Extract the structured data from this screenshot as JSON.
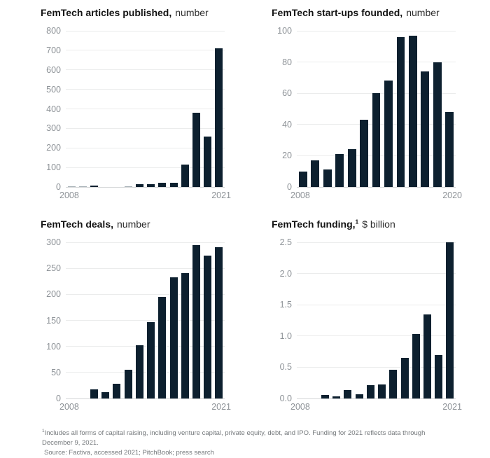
{
  "colors": {
    "bar": "#0d202f",
    "tiny_bar": "#a7b0b6",
    "gridline": "#ebecec",
    "axis_text": "#8d9297",
    "background": "#ffffff"
  },
  "chart_data": [
    {
      "type": "bar",
      "id": "articles-published",
      "title_bold": "FemTech articles published,",
      "title_suffix": "number",
      "xlabel": "",
      "ylabel": "number",
      "categories": [
        2008,
        2009,
        2010,
        2011,
        2012,
        2013,
        2014,
        2015,
        2016,
        2017,
        2018,
        2019,
        2020,
        2021
      ],
      "values": [
        2,
        2,
        8,
        0,
        0,
        4,
        15,
        13,
        20,
        22,
        115,
        380,
        260,
        710
      ],
      "yticks": [
        "800",
        "700",
        "600",
        "500",
        "400",
        "300",
        "200",
        "100",
        "0"
      ],
      "ylim": [
        0,
        800
      ],
      "x_axis_labels": [
        "2008",
        "2021"
      ],
      "grid": true,
      "legend": "none"
    },
    {
      "type": "bar",
      "id": "startups-founded",
      "title_bold": "FemTech start-ups founded,",
      "title_suffix": "number",
      "xlabel": "",
      "ylabel": "number",
      "categories": [
        2008,
        2009,
        2010,
        2011,
        2012,
        2013,
        2014,
        2015,
        2016,
        2017,
        2018,
        2019,
        2020
      ],
      "values": [
        10,
        17,
        11,
        21,
        24,
        43,
        60,
        68,
        96,
        97,
        74,
        80,
        48
      ],
      "yticks": [
        "100",
        "80",
        "60",
        "40",
        "20",
        "0"
      ],
      "ylim": [
        0,
        100
      ],
      "x_axis_labels": [
        "2008",
        "2020"
      ],
      "grid": true,
      "legend": "none"
    },
    {
      "type": "bar",
      "id": "deals",
      "title_bold": "FemTech deals,",
      "title_suffix": "number",
      "xlabel": "",
      "ylabel": "number",
      "categories": [
        2008,
        2009,
        2010,
        2011,
        2012,
        2013,
        2014,
        2015,
        2016,
        2017,
        2018,
        2019,
        2020,
        2021
      ],
      "values": [
        0,
        0,
        18,
        12,
        28,
        55,
        102,
        147,
        195,
        233,
        241,
        294,
        274,
        291
      ],
      "yticks": [
        "300",
        "250",
        "200",
        "150",
        "100",
        "50",
        "0"
      ],
      "ylim": [
        0,
        300
      ],
      "x_axis_labels": [
        "2008",
        "2021"
      ],
      "grid": true,
      "legend": "none"
    },
    {
      "type": "bar",
      "id": "funding",
      "title_bold": "FemTech funding,",
      "title_sup": "1",
      "title_suffix": "$ billion",
      "xlabel": "",
      "ylabel": "$ billion",
      "categories": [
        2008,
        2009,
        2010,
        2011,
        2012,
        2013,
        2014,
        2015,
        2016,
        2017,
        2018,
        2019,
        2020,
        2021
      ],
      "values": [
        0,
        0,
        0.06,
        0.03,
        0.13,
        0.07,
        0.21,
        0.22,
        0.46,
        0.65,
        1.03,
        1.35,
        0.69,
        2.5
      ],
      "yticks": [
        "2.5",
        "2.0",
        "1.5",
        "1.0",
        "0.5",
        "0.0"
      ],
      "ylim": [
        0,
        2.5
      ],
      "x_axis_labels": [
        "2008",
        "2021"
      ],
      "grid": true,
      "legend": "none"
    }
  ],
  "footnote": {
    "sup": "1",
    "line1": "Includes all forms of capital raising, including venture capital, private equity, debt, and IPO. Funding for 2021 reflects data through December 9, 2021.",
    "line2": "Source: Factiva, accessed 2021; PitchBook; press search"
  }
}
